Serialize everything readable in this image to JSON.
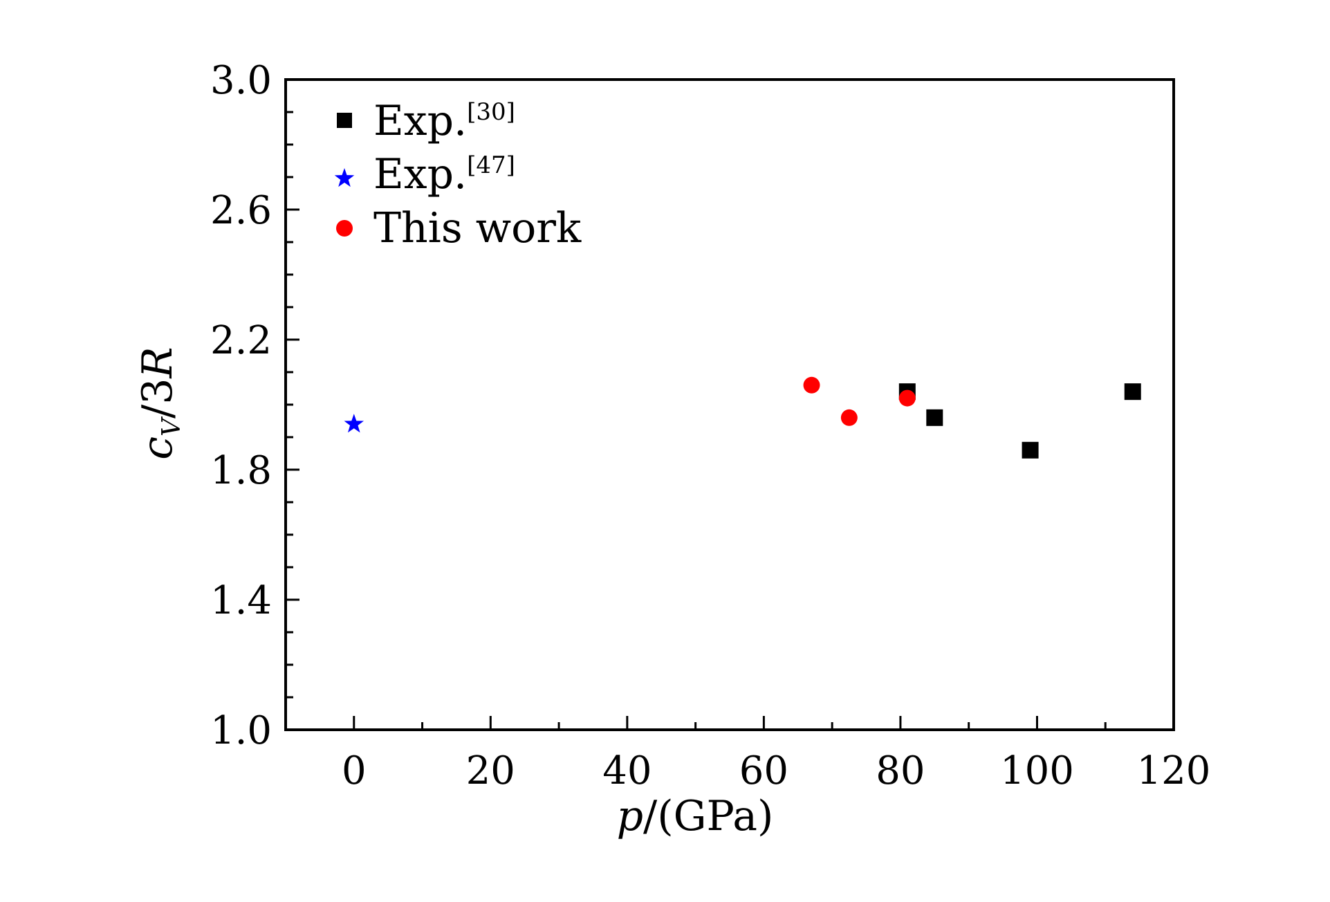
{
  "chart_data": {
    "type": "scatter",
    "title": "",
    "xlabel": {
      "var": "p",
      "unit": "/(GPa)"
    },
    "ylabel": {
      "var": "c",
      "sub": "V",
      "rest": "/3",
      "var2": "R"
    },
    "xlim": [
      -10,
      120
    ],
    "ylim": [
      1.0,
      3.0
    ],
    "x_ticks": [
      0,
      20,
      40,
      60,
      80,
      100,
      120
    ],
    "x_tick_labels": [
      "0",
      "20",
      "40",
      "60",
      "80",
      "100",
      "120"
    ],
    "y_ticks": [
      1.0,
      1.4,
      1.8,
      2.2,
      2.6,
      3.0
    ],
    "y_tick_labels": [
      "1.0",
      "1.4",
      "1.8",
      "2.2",
      "2.6",
      "3.0"
    ],
    "grid": false,
    "legend_position": "top-left",
    "series": [
      {
        "name": "Exp.",
        "ref": "[30]",
        "marker": "square",
        "color": "#000000",
        "points": [
          {
            "x": 81,
            "y": 2.04
          },
          {
            "x": 85,
            "y": 1.96
          },
          {
            "x": 99,
            "y": 1.86
          },
          {
            "x": 114,
            "y": 2.04
          }
        ]
      },
      {
        "name": "Exp.",
        "ref": "[47]",
        "marker": "star",
        "color": "#0000ff",
        "points": [
          {
            "x": 0,
            "y": 1.94
          }
        ]
      },
      {
        "name": "This work",
        "ref": "",
        "marker": "circle",
        "color": "#ff0000",
        "points": [
          {
            "x": 67,
            "y": 2.06
          },
          {
            "x": 72.5,
            "y": 1.96
          },
          {
            "x": 81,
            "y": 2.02
          }
        ]
      }
    ]
  }
}
